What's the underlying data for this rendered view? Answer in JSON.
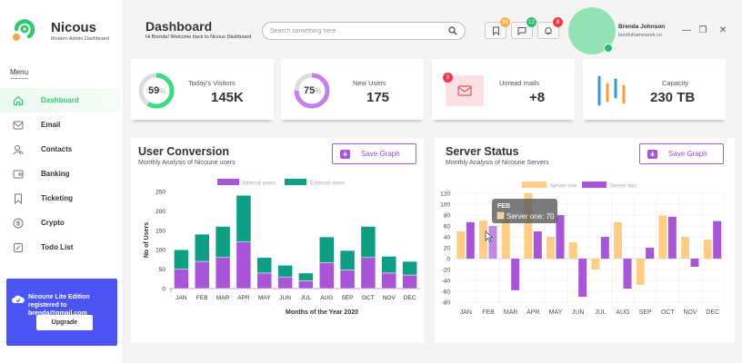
{
  "brand": {
    "name": "Nicous",
    "tagline": "Modern Admin Dashboard"
  },
  "header": {
    "title": "Dashboard",
    "subtitle": "Hi Brenda! Welcome back to Nicous Dashboard",
    "search_placeholder": "Search something here",
    "icons": [
      {
        "name": "bookmark-icon",
        "badge": "34",
        "badge_color": "#f6b04e"
      },
      {
        "name": "chat-icon",
        "badge": "12",
        "badge_color": "#27c069"
      },
      {
        "name": "bell-icon",
        "badge": "8",
        "badge_color": "#f03a45"
      }
    ],
    "user": {
      "name": "Brenda Johnson",
      "site": "bunifuframework.co"
    },
    "window": {
      "minimize": "—",
      "restore": "❐",
      "close": "✕"
    }
  },
  "sidebar": {
    "menu_label": "Menu",
    "items": [
      {
        "label": "Dashboard",
        "icon": "home-icon",
        "active": true
      },
      {
        "label": "Email",
        "icon": "mail-icon"
      },
      {
        "label": "Contacts",
        "icon": "contacts-icon"
      },
      {
        "label": "Banking",
        "icon": "wallet-icon"
      },
      {
        "label": "Ticketing",
        "icon": "bookmark-icon"
      },
      {
        "label": "Crypto",
        "icon": "coin-icon"
      },
      {
        "label": "Todo List",
        "icon": "edit-icon"
      }
    ],
    "promo": {
      "text": "Nicoune Lite Edition registered to brenda@gmail.com",
      "button": "Upgrade"
    }
  },
  "stats": [
    {
      "label": "Today's Visitors",
      "value": "145K",
      "percent": 59,
      "percent_sign": "%",
      "color": "#3ddc84"
    },
    {
      "label": "New Users",
      "value": "175",
      "percent": 75,
      "percent_sign": "%",
      "color": "#c77dea"
    },
    {
      "label": "Unread mails",
      "value": "+8",
      "badge": "8"
    },
    {
      "label": "Capacity",
      "value": "230 TB"
    }
  ],
  "panels": {
    "user_conversion": {
      "title": "User Conversion",
      "subtitle": "Monthly Analysis of Nicoune users",
      "save_label": "Save Graph"
    },
    "server_status": {
      "title": "Server Status",
      "subtitle": "Monthly Analysis of Nicoune Servers",
      "save_label": "Save Graph"
    }
  },
  "chart_data": [
    {
      "type": "bar",
      "stacked": true,
      "categories": [
        "JAN",
        "FEB",
        "MAR",
        "APR",
        "MAY",
        "JUN",
        "JUL",
        "AUG",
        "SEP",
        "OCT",
        "NOV",
        "DEC"
      ],
      "series": [
        {
          "name": "Internal users",
          "color": "#a855d8",
          "values": [
            50,
            70,
            80,
            120,
            40,
            30,
            20,
            67,
            48,
            80,
            40,
            35
          ]
        },
        {
          "name": "External users",
          "color": "#0e9e84",
          "values": [
            50,
            70,
            80,
            120,
            40,
            30,
            20,
            66,
            50,
            80,
            43,
            35
          ]
        }
      ],
      "xlabel": "Months of the Year 2020",
      "ylabel": "No of Users",
      "ylim": [
        0,
        250
      ],
      "yticks": [
        0,
        50,
        100,
        150,
        200,
        250
      ],
      "legend": "top"
    },
    {
      "type": "bar",
      "categories": [
        "JAN",
        "FEB",
        "MAR",
        "APR",
        "MAY",
        "JUN",
        "JUL",
        "AUG",
        "SEP",
        "OCT",
        "NOV",
        "DEC"
      ],
      "series": [
        {
          "name": "Server one",
          "color": "#ffcd85",
          "values": [
            50,
            70,
            80,
            120,
            40,
            30,
            -20,
            67,
            -48,
            79,
            40,
            35
          ]
        },
        {
          "name": "Server two",
          "color": "#a855d8",
          "values": [
            67,
            60,
            -58,
            50,
            80,
            -70,
            40,
            -55,
            20,
            77,
            -15,
            69
          ]
        }
      ],
      "ylim": [
        -80,
        120
      ],
      "yticks": [
        -80,
        -60,
        -40,
        -20,
        0,
        20,
        40,
        60,
        80,
        100,
        120
      ],
      "grid": true,
      "legend": "top",
      "tooltip": {
        "title": "FEB",
        "text": "Server one: 70",
        "category": "FEB"
      }
    }
  ]
}
